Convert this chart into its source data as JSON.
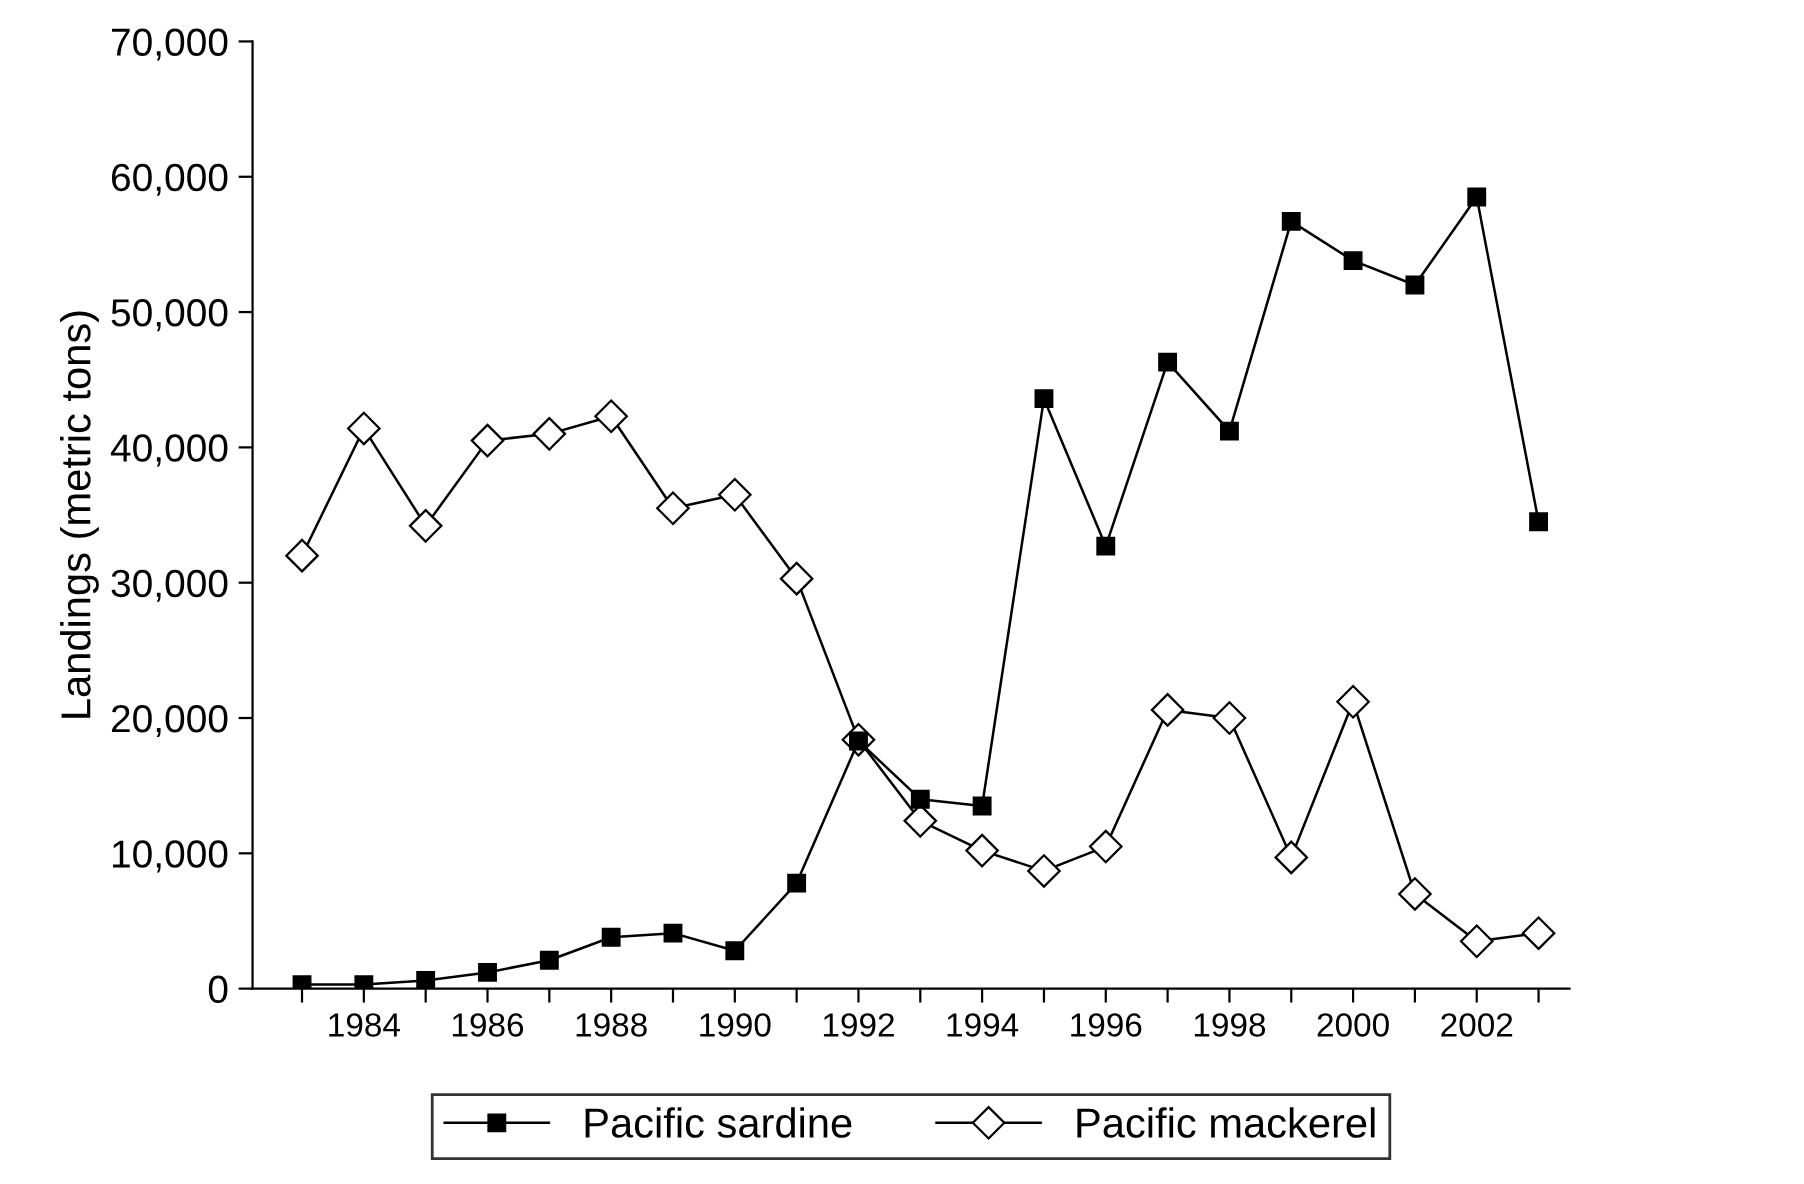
{
  "chart_data": {
    "type": "line",
    "ylabel": "Landings (metric tons)",
    "x": [
      1983,
      1984,
      1985,
      1986,
      1987,
      1988,
      1989,
      1990,
      1991,
      1992,
      1993,
      1994,
      1995,
      1996,
      1997,
      1998,
      1999,
      2000,
      2001,
      2002,
      2003
    ],
    "series": [
      {
        "name": "Pacific sardine",
        "color": "#000000",
        "marker": "square",
        "values": [
          300,
          300,
          600,
          1200,
          2100,
          3800,
          4100,
          2800,
          7800,
          18300,
          14000,
          13500,
          43600,
          32700,
          46300,
          41200,
          56700,
          53800,
          52000,
          58500,
          34500
        ]
      },
      {
        "name": "Pacific mackerel",
        "color": "#000000",
        "marker": "diamond",
        "values": [
          32000,
          41400,
          34200,
          40500,
          41000,
          42300,
          35500,
          36500,
          30300,
          18400,
          12400,
          10200,
          8700,
          10500,
          20600,
          20000,
          9700,
          21200,
          7000,
          3500,
          4100
        ]
      }
    ],
    "xlim": [
      1982.2,
      2003.5
    ],
    "xticks": [
      {
        "value": 1983,
        "label": null
      },
      1984,
      {
        "value": 1985,
        "label": null
      },
      1986,
      {
        "value": 1987,
        "label": null
      },
      1988,
      {
        "value": 1989,
        "label": null
      },
      1990,
      {
        "value": 1991,
        "label": null
      },
      1992,
      {
        "value": 1993,
        "label": null
      },
      1994,
      {
        "value": 1995,
        "label": null
      },
      1996,
      {
        "value": 1997,
        "label": null
      },
      1998,
      {
        "value": 1999,
        "label": null
      },
      2000,
      {
        "value": 2001,
        "label": null
      },
      2002,
      {
        "value": 2003,
        "label": null
      }
    ],
    "ylim": [
      0,
      70000
    ],
    "yticks": [
      {
        "value": 0,
        "label": "0"
      },
      {
        "value": 10000,
        "label": "10,000"
      },
      {
        "value": 20000,
        "label": "20,000"
      },
      {
        "value": 30000,
        "label": "30,000"
      },
      {
        "value": 40000,
        "label": "40,000"
      },
      {
        "value": 50000,
        "label": "50,000"
      },
      {
        "value": 60000,
        "label": "60,000"
      },
      {
        "value": 70000,
        "label": "70,000"
      }
    ],
    "grid": false,
    "legend": "bottom",
    "line_style": "solid"
  }
}
